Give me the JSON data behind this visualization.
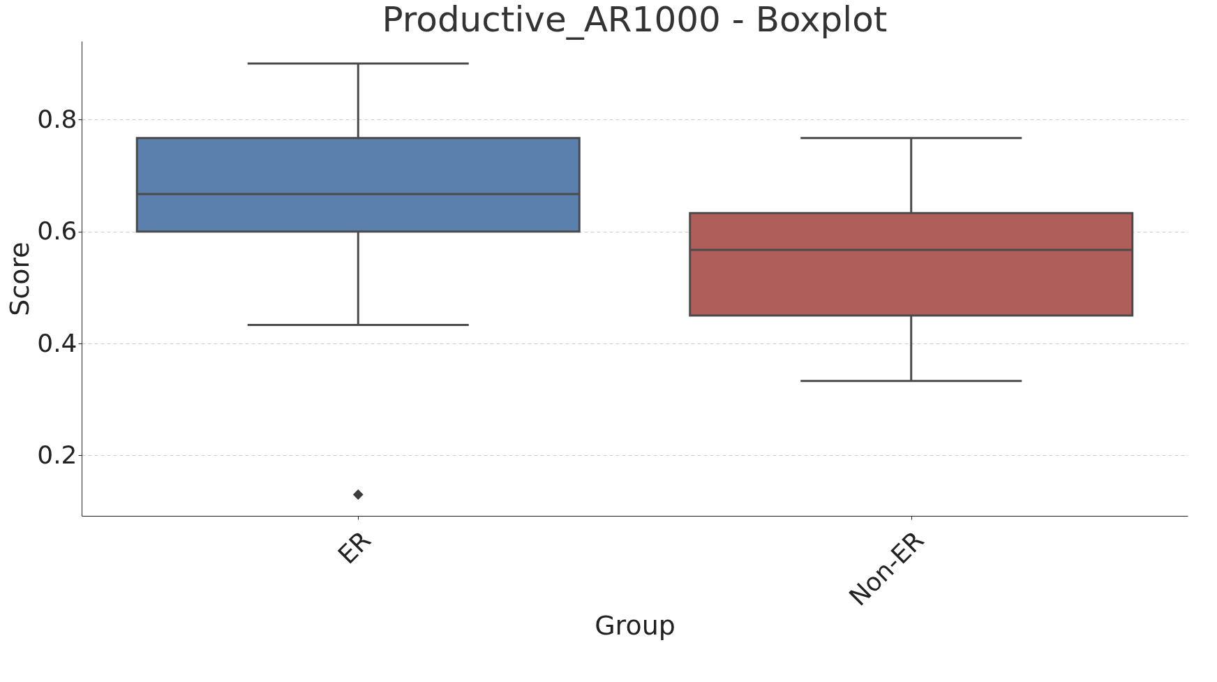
{
  "chart_data": {
    "type": "box",
    "title": "Productive_AR1000 - Boxplot",
    "xlabel": "Group",
    "ylabel": "Score",
    "categories": [
      "ER",
      "Non-ER"
    ],
    "boxes": [
      {
        "low": 0.433,
        "q1": 0.6,
        "median": 0.667,
        "q3": 0.767,
        "high": 0.9,
        "outliers": [
          0.13
        ]
      },
      {
        "low": 0.333,
        "q1": 0.45,
        "median": 0.567,
        "q3": 0.633,
        "high": 0.767
      }
    ],
    "colors": [
      "#5b80ae",
      "#b05e5a"
    ],
    "ylim": [
      0.092,
      0.94
    ],
    "yticks": [
      0.2,
      0.4,
      0.6,
      0.8
    ],
    "grid": "y",
    "marker": "diamond"
  }
}
